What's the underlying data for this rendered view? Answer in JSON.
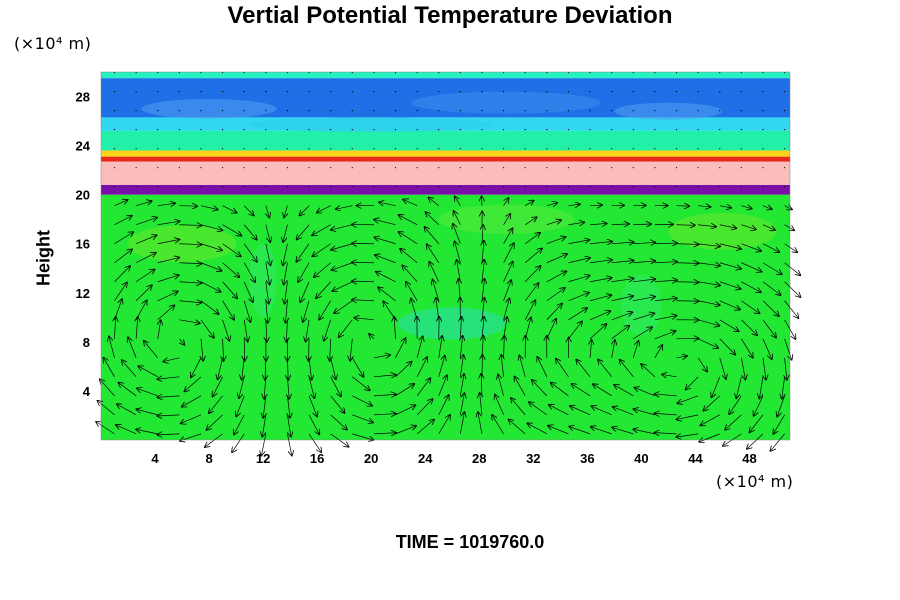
{
  "chart_data": {
    "type": "heatmap",
    "title": "Vertial Potential Temperature Deviation",
    "ylabel": "Height",
    "y_unit_label": "(×10⁴ m)",
    "x_unit_label": "(×10⁴ m)",
    "x_ticks": [
      4,
      8,
      12,
      16,
      20,
      24,
      28,
      32,
      36,
      40,
      44,
      48
    ],
    "y_ticks": [
      4,
      8,
      12,
      16,
      20,
      24,
      28
    ],
    "xlim": [
      0,
      51
    ],
    "ylim": [
      0,
      30
    ],
    "overlay": "wind vector arrows",
    "bands": [
      {
        "from": 0,
        "to": 20,
        "color": "#22e834"
      },
      {
        "from": 20,
        "to": 20.8,
        "color": "#7a0fa8"
      },
      {
        "from": 20.8,
        "to": 22.7,
        "color": "#fbbcbc"
      },
      {
        "from": 22.7,
        "to": 23.1,
        "color": "#e8261a"
      },
      {
        "from": 23.1,
        "to": 23.6,
        "color": "#ffd21a"
      },
      {
        "from": 23.6,
        "to": 25.2,
        "color": "#22f0a8"
      },
      {
        "from": 25.2,
        "to": 26.3,
        "color": "#2fd8f0"
      },
      {
        "from": 26.3,
        "to": 29.5,
        "color": "#1f6fe6"
      },
      {
        "from": 29.5,
        "to": 30,
        "color": "#25f0c0"
      }
    ]
  },
  "footer": "TIME = 1019760.0"
}
